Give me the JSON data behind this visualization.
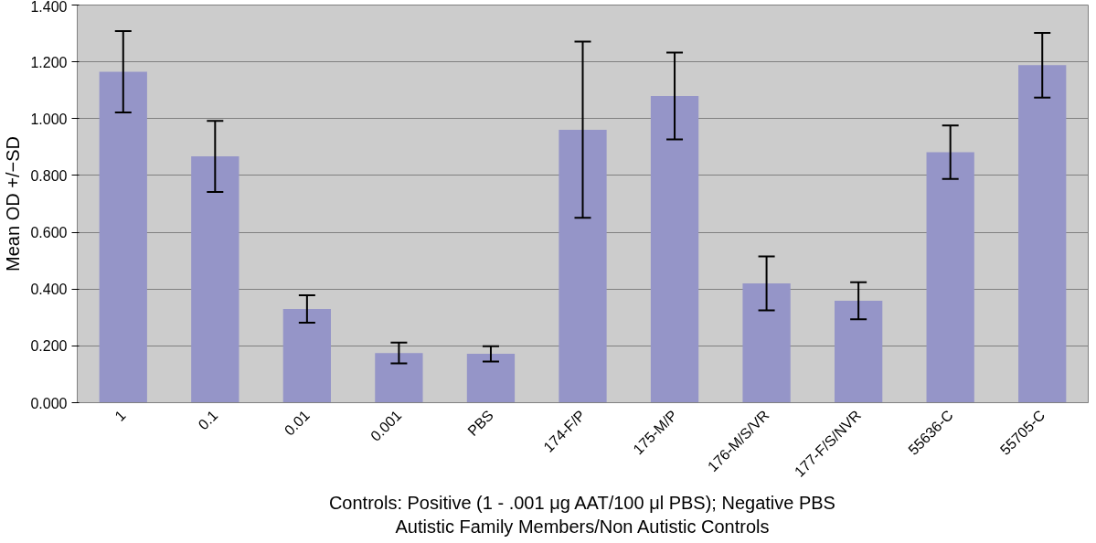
{
  "chart_data": {
    "type": "bar",
    "ylabel": "Mean OD +/−SD",
    "xlabel": "Controls: Positive (1 - .001 μg AAT/100 μl PBS); Negative PBS\nAutistic Family Members/Non Autistic Controls",
    "categories": [
      "1",
      "0.1",
      "0.01",
      "0.001",
      "PBS",
      "174-F/P",
      "175-M/P",
      "176-M/S/VR",
      "177-F/S/NVR",
      "55636-C",
      "55705-C"
    ],
    "values": [
      1.165,
      0.867,
      0.33,
      0.175,
      0.172,
      0.961,
      1.08,
      0.42,
      0.359,
      0.882,
      1.188
    ],
    "errors": [
      0.143,
      0.125,
      0.048,
      0.037,
      0.027,
      0.31,
      0.153,
      0.095,
      0.065,
      0.094,
      0.114
    ],
    "color": "#9595c8",
    "ylim": [
      0,
      1.4
    ],
    "yticks": [
      {
        "value": 0,
        "label": "0.000"
      },
      {
        "value": 0.2,
        "label": "0.200"
      },
      {
        "value": 0.4,
        "label": "0.400"
      },
      {
        "value": 0.6,
        "label": "0.600"
      },
      {
        "value": 0.8,
        "label": "0.800"
      },
      {
        "value": 1.0,
        "label": "1.000"
      },
      {
        "value": 1.2,
        "label": "1.200"
      },
      {
        "value": 1.4,
        "label": "1.400"
      }
    ],
    "grid": "y"
  }
}
